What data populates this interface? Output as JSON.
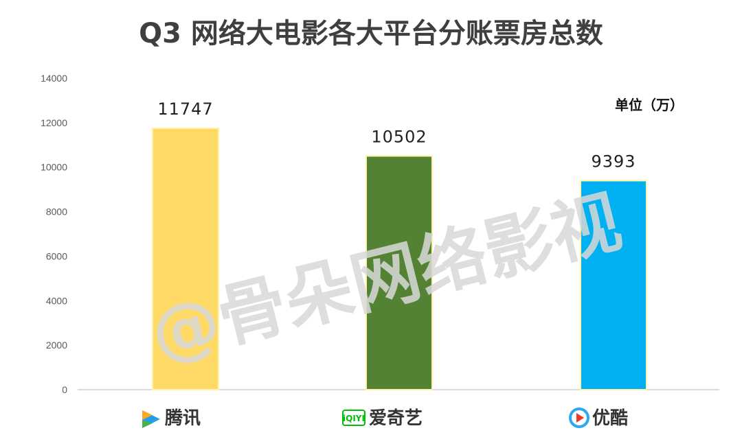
{
  "watermark": "@骨朵网络影视",
  "chart_data": {
    "type": "bar",
    "title": "Q3 网络大电影各大平台分账票房总数",
    "unit_label": "单位（万）",
    "categories": [
      "腾讯",
      "爱奇艺",
      "优酷"
    ],
    "category_logos": [
      "tencent-video-logo",
      "iqiyi-logo",
      "youku-logo"
    ],
    "values": [
      11747,
      10502,
      9393
    ],
    "data_labels": [
      "11747",
      "10502",
      "9393"
    ],
    "colors": [
      "#FFD966",
      "#548235",
      "#00B0F0"
    ],
    "bar_edge_color": "#FFF2AB",
    "ylim": [
      0,
      14000
    ],
    "yticks": [
      0,
      2000,
      4000,
      6000,
      8000,
      10000,
      12000,
      14000
    ],
    "grid": false,
    "legend": "none",
    "xlabel": "",
    "ylabel": ""
  }
}
